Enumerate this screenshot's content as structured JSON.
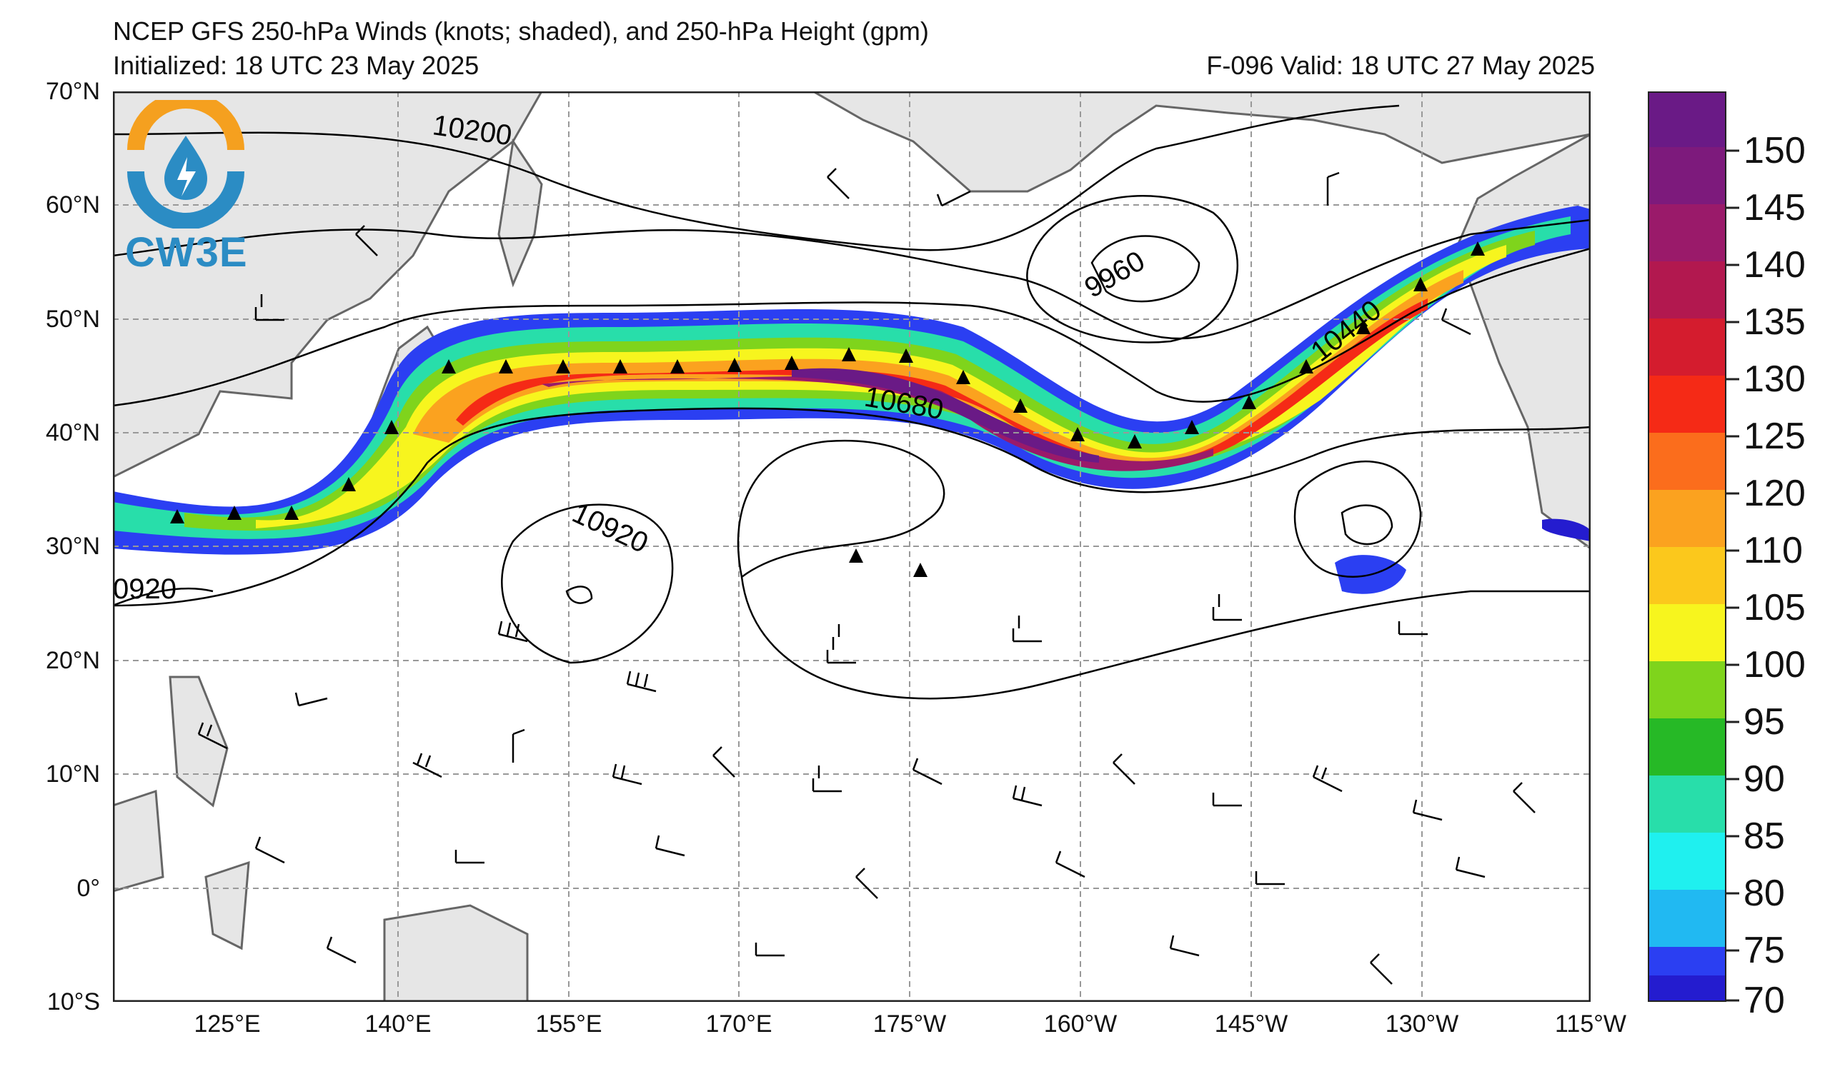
{
  "header": {
    "title": "NCEP GFS 250-hPa Winds (knots; shaded), and 250-hPa Height (gpm)",
    "initialized": "Initialized: 18 UTC 23 May 2025",
    "valid": "F-096  Valid: 18 UTC 27 May 2025"
  },
  "logo": {
    "text": "CW3E",
    "icon": "water-drop-lightning-icon"
  },
  "map": {
    "lat_labels": [
      "70°N",
      "60°N",
      "50°N",
      "40°N",
      "30°N",
      "20°N",
      "10°N",
      "0°",
      "10°S"
    ],
    "lon_labels": [
      "125°E",
      "140°E",
      "155°E",
      "170°E",
      "175°W",
      "160°W",
      "145°W",
      "130°W",
      "115°W"
    ],
    "contour_labels": [
      "10200",
      "9960",
      "10440",
      "10680",
      "10920",
      "0920"
    ],
    "land_color": "#e6e6e6",
    "coast_color": "#666666",
    "grid_color": "#999999"
  },
  "colorbar": {
    "labels": [
      "150",
      "145",
      "140",
      "135",
      "130",
      "125",
      "120",
      "110",
      "105",
      "100",
      "95",
      "90",
      "85",
      "80",
      "75",
      "70"
    ],
    "colors": [
      "#6a1a86",
      "#7d1a7c",
      "#9a1a6a",
      "#b2184f",
      "#d41c2e",
      "#f52a16",
      "#fb6d1c",
      "#fba21f",
      "#fbc81c",
      "#f7f51e",
      "#7fd41c",
      "#26b926",
      "#28deaa",
      "#1ff0ef",
      "#21b9f2",
      "#2b3ff2",
      "#241ccf"
    ]
  }
}
